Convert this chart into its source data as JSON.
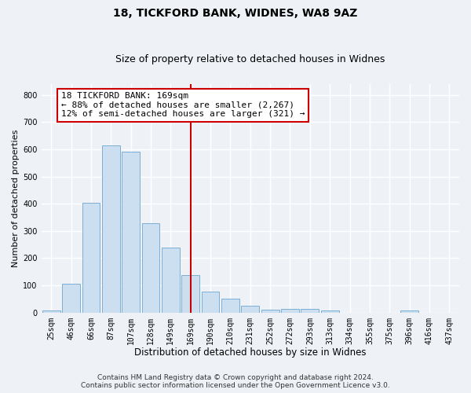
{
  "title1": "18, TICKFORD BANK, WIDNES, WA8 9AZ",
  "title2": "Size of property relative to detached houses in Widnes",
  "xlabel": "Distribution of detached houses by size in Widnes",
  "ylabel": "Number of detached properties",
  "categories": [
    "25sqm",
    "46sqm",
    "66sqm",
    "87sqm",
    "107sqm",
    "128sqm",
    "149sqm",
    "169sqm",
    "190sqm",
    "210sqm",
    "231sqm",
    "252sqm",
    "272sqm",
    "293sqm",
    "313sqm",
    "334sqm",
    "355sqm",
    "375sqm",
    "396sqm",
    "416sqm",
    "437sqm"
  ],
  "values": [
    7,
    105,
    403,
    613,
    592,
    328,
    238,
    137,
    77,
    50,
    25,
    12,
    15,
    15,
    7,
    0,
    0,
    0,
    7,
    0,
    0
  ],
  "bar_color": "#ccdff0",
  "bar_edge_color": "#7aafd4",
  "vline_x_index": 7,
  "vline_color": "#cc0000",
  "annotation_text": "18 TICKFORD BANK: 169sqm\n← 88% of detached houses are smaller (2,267)\n12% of semi-detached houses are larger (321) →",
  "annotation_box_color": "white",
  "annotation_box_edge_color": "#cc0000",
  "ylim": [
    0,
    840
  ],
  "yticks": [
    0,
    100,
    200,
    300,
    400,
    500,
    600,
    700,
    800
  ],
  "footer1": "Contains HM Land Registry data © Crown copyright and database right 2024.",
  "footer2": "Contains public sector information licensed under the Open Government Licence v3.0.",
  "bg_color": "#eef2f7",
  "grid_color": "#ffffff",
  "title1_fontsize": 10,
  "title2_fontsize": 9,
  "xlabel_fontsize": 8.5,
  "ylabel_fontsize": 8,
  "tick_fontsize": 7,
  "annotation_fontsize": 8,
  "footer_fontsize": 6.5
}
